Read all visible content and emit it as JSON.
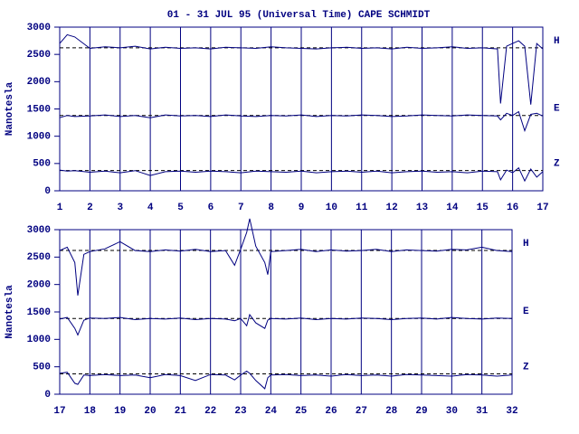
{
  "chart_data": [
    {
      "type": "line",
      "title": "01 - 31 JUL 95 (Universal Time) CAPE SCHMIDT",
      "ylabel": "Nanotesla",
      "x": [
        1,
        1.25,
        1.5,
        2,
        2.5,
        3,
        3.5,
        4,
        4.5,
        5,
        5.5,
        6,
        6.5,
        7,
        7.5,
        8,
        8.5,
        9,
        9.5,
        10,
        10.5,
        11,
        11.5,
        12,
        12.5,
        13,
        13.5,
        14,
        14.5,
        15,
        15.5,
        15.6,
        15.8,
        16,
        16.2,
        16.4,
        16.6,
        16.8,
        17
      ],
      "xlim": [
        1,
        17
      ],
      "xticks": [
        1,
        2,
        3,
        4,
        5,
        6,
        7,
        8,
        9,
        10,
        11,
        12,
        13,
        14,
        15,
        16,
        17
      ],
      "ylim": [
        0,
        3000
      ],
      "yticks": [
        0,
        500,
        1000,
        1500,
        2000,
        2500,
        3000
      ],
      "grid": true,
      "series": [
        {
          "name": "H",
          "color": "#000080",
          "baseline": 2620,
          "values": [
            2700,
            2860,
            2820,
            2610,
            2640,
            2620,
            2650,
            2600,
            2630,
            2610,
            2620,
            2600,
            2630,
            2620,
            2610,
            2640,
            2620,
            2610,
            2600,
            2620,
            2630,
            2610,
            2620,
            2600,
            2630,
            2610,
            2620,
            2640,
            2610,
            2620,
            2600,
            1600,
            2650,
            2700,
            2750,
            2650,
            1580,
            2700,
            2600
          ]
        },
        {
          "name": "E",
          "color": "#000080",
          "baseline": 1380,
          "values": [
            1340,
            1380,
            1360,
            1370,
            1390,
            1360,
            1380,
            1340,
            1390,
            1370,
            1380,
            1360,
            1390,
            1370,
            1360,
            1380,
            1370,
            1390,
            1360,
            1380,
            1370,
            1390,
            1380,
            1360,
            1370,
            1390,
            1380,
            1370,
            1390,
            1380,
            1370,
            1300,
            1420,
            1380,
            1450,
            1100,
            1400,
            1420,
            1370
          ]
        },
        {
          "name": "Z",
          "color": "#000080",
          "baseline": 370,
          "values": [
            380,
            360,
            370,
            340,
            360,
            330,
            370,
            280,
            350,
            360,
            340,
            360,
            350,
            330,
            360,
            350,
            340,
            360,
            330,
            350,
            360,
            340,
            360,
            330,
            350,
            360,
            340,
            350,
            330,
            360,
            350,
            200,
            380,
            330,
            420,
            180,
            400,
            250,
            350
          ]
        }
      ]
    },
    {
      "type": "line",
      "ylabel": "Nanotesla",
      "x": [
        17,
        17.25,
        17.5,
        17.6,
        17.8,
        18,
        18.5,
        19,
        19.5,
        20,
        20.5,
        21,
        21.5,
        22,
        22.5,
        22.8,
        23,
        23.2,
        23.3,
        23.5,
        23.8,
        23.9,
        24,
        24.5,
        25,
        25.5,
        26,
        26.5,
        27,
        27.5,
        28,
        28.5,
        29,
        29.5,
        30,
        30.5,
        31,
        31.5,
        32
      ],
      "xlim": [
        17,
        32
      ],
      "xticks": [
        17,
        18,
        19,
        20,
        21,
        22,
        23,
        24,
        25,
        26,
        27,
        28,
        29,
        30,
        31,
        32
      ],
      "ylim": [
        0,
        3000
      ],
      "yticks": [
        0,
        500,
        1000,
        1500,
        2000,
        2500,
        3000
      ],
      "grid": true,
      "series": [
        {
          "name": "H",
          "color": "#000080",
          "baseline": 2620,
          "values": [
            2620,
            2680,
            2400,
            1800,
            2550,
            2600,
            2650,
            2780,
            2620,
            2600,
            2630,
            2610,
            2640,
            2600,
            2620,
            2350,
            2640,
            2950,
            3200,
            2700,
            2400,
            2180,
            2600,
            2620,
            2640,
            2600,
            2630,
            2610,
            2620,
            2640,
            2600,
            2630,
            2620,
            2610,
            2640,
            2630,
            2680,
            2620,
            2600
          ]
        },
        {
          "name": "E",
          "color": "#000080",
          "baseline": 1380,
          "values": [
            1370,
            1400,
            1200,
            1080,
            1350,
            1390,
            1380,
            1400,
            1360,
            1380,
            1370,
            1390,
            1360,
            1380,
            1370,
            1340,
            1380,
            1250,
            1450,
            1300,
            1200,
            1350,
            1380,
            1370,
            1390,
            1360,
            1380,
            1370,
            1390,
            1380,
            1360,
            1380,
            1390,
            1370,
            1400,
            1380,
            1370,
            1390,
            1380
          ]
        },
        {
          "name": "Z",
          "color": "#000080",
          "baseline": 370,
          "values": [
            380,
            400,
            200,
            180,
            350,
            340,
            360,
            340,
            350,
            300,
            360,
            340,
            250,
            360,
            350,
            260,
            350,
            420,
            380,
            250,
            100,
            300,
            350,
            360,
            340,
            350,
            330,
            360,
            340,
            350,
            330,
            360,
            350,
            340,
            330,
            360,
            350,
            330,
            350
          ]
        }
      ]
    }
  ]
}
